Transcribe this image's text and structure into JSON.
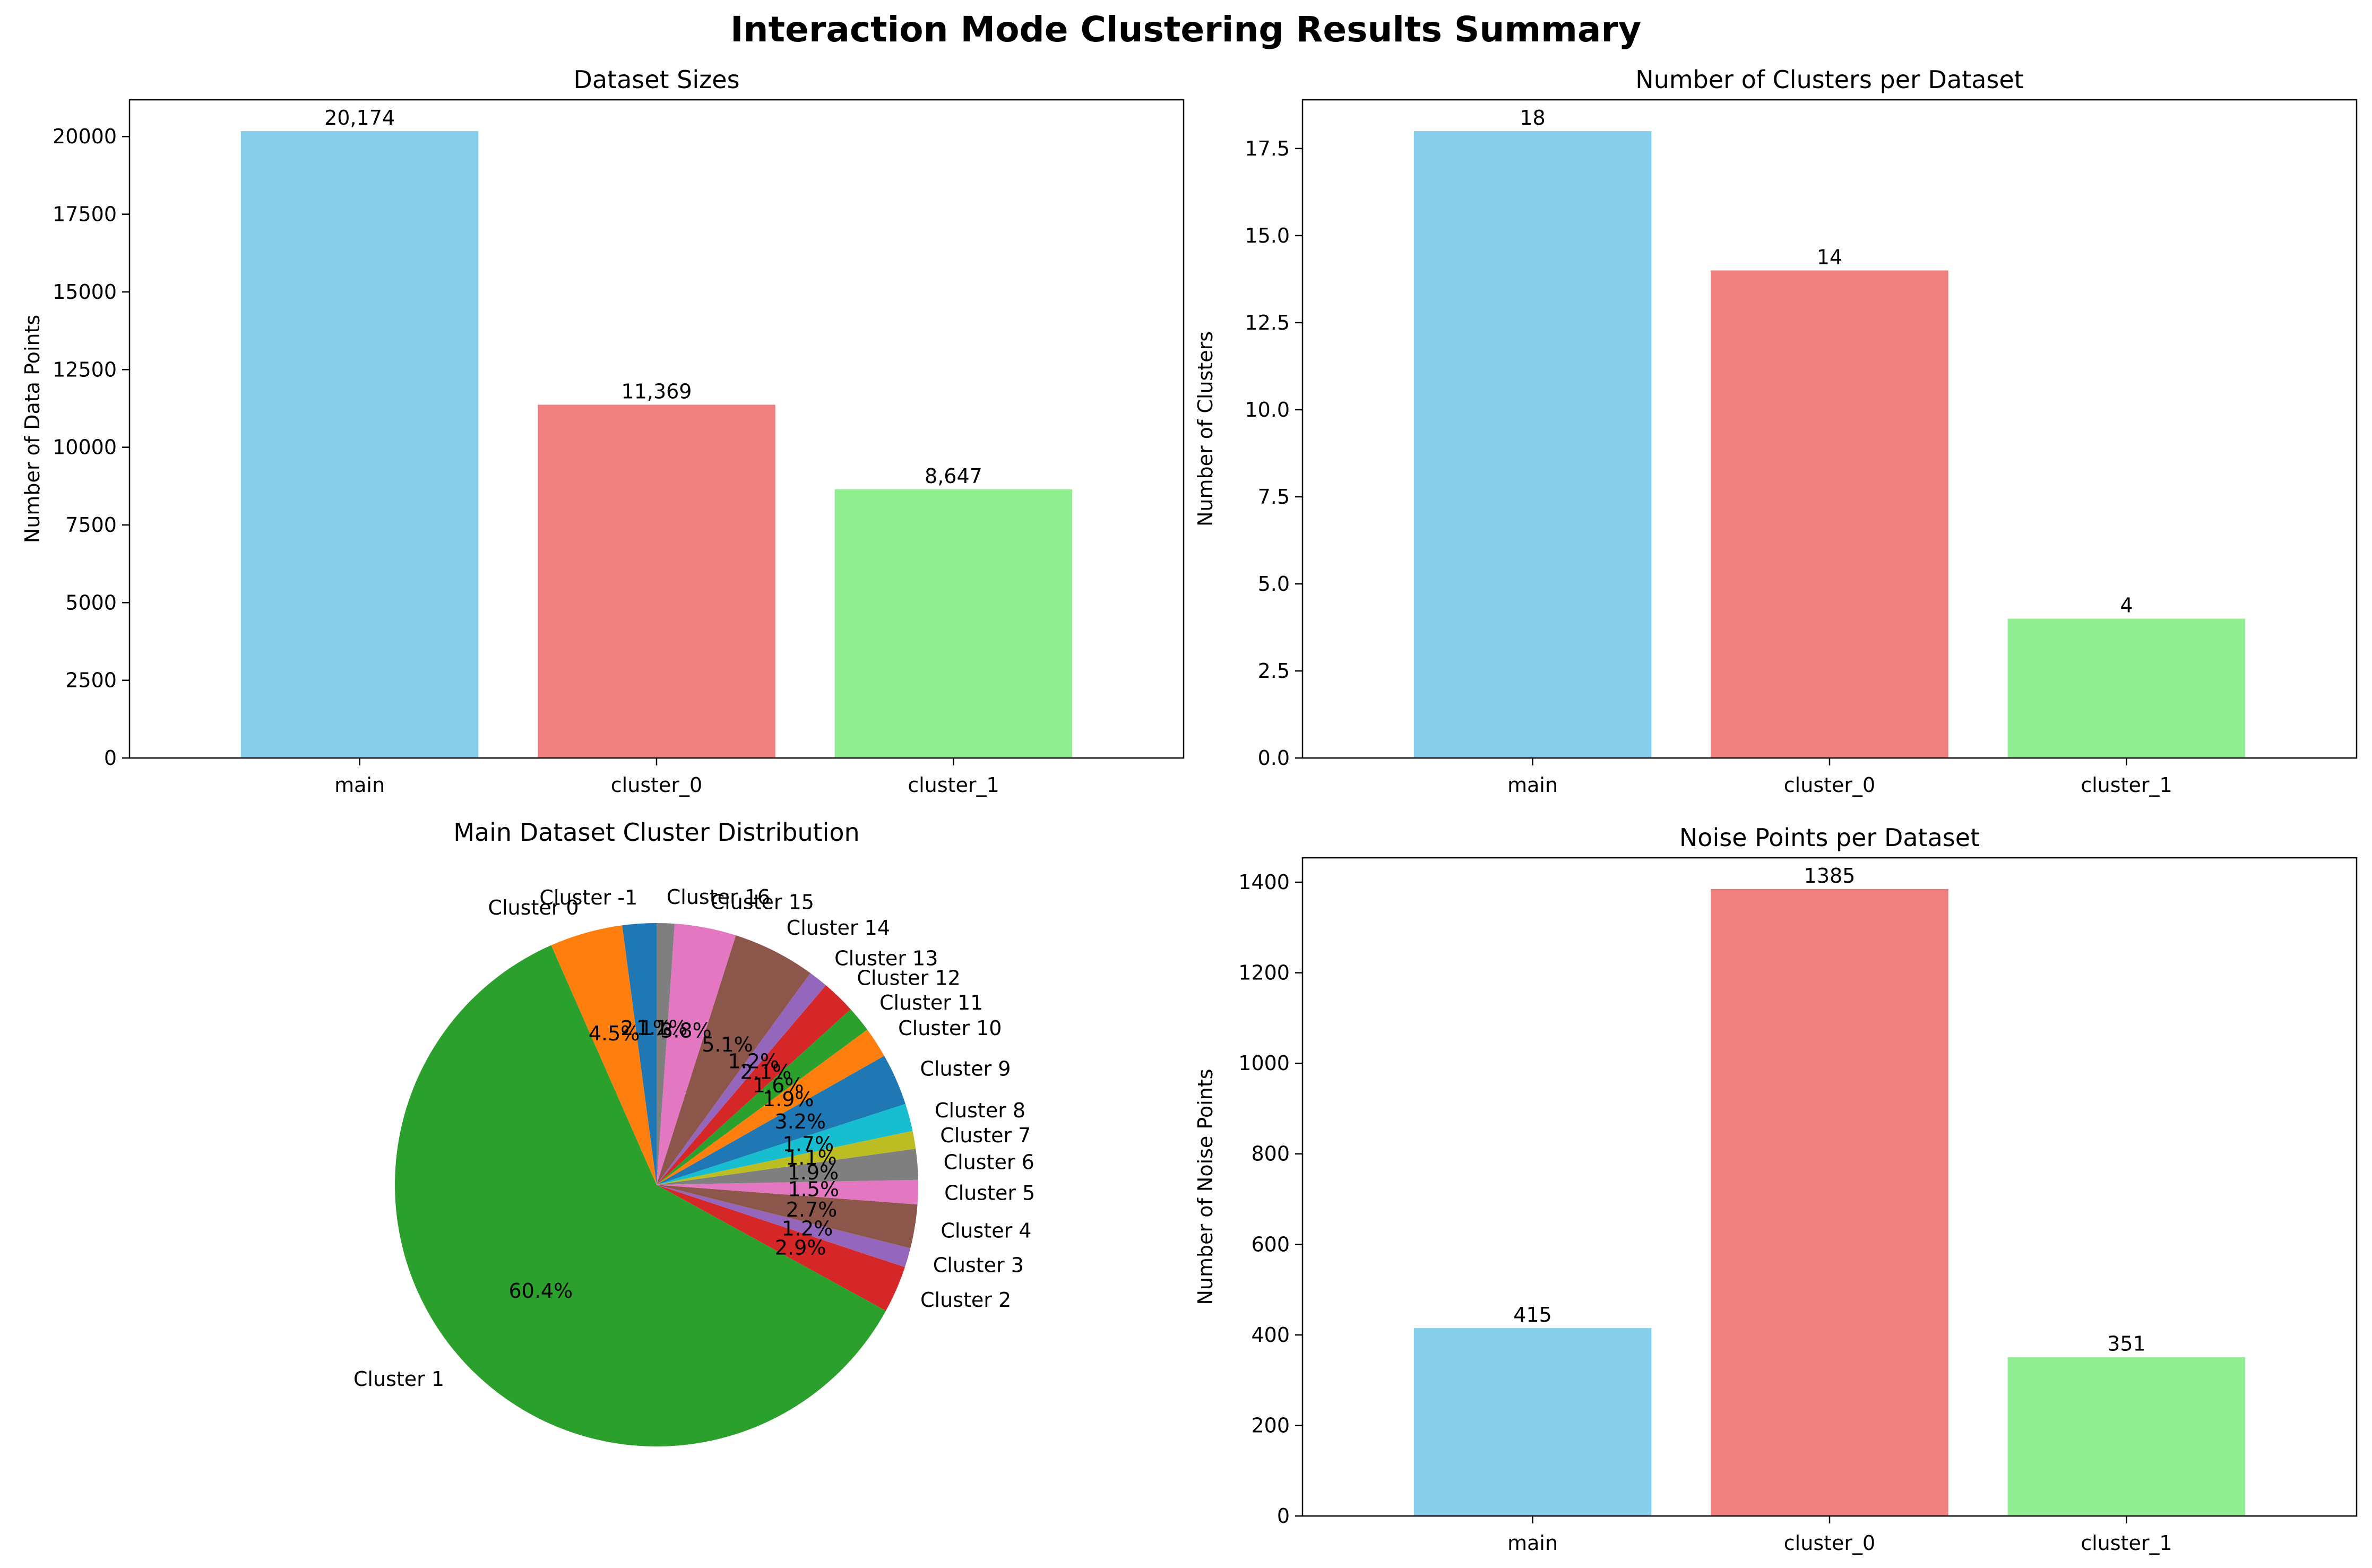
{
  "suptitle": "Interaction Mode Clustering Results Summary",
  "chart_data": [
    {
      "type": "bar",
      "title": "Dataset Sizes",
      "xlabel": "",
      "ylabel": "Number of Data Points",
      "categories": [
        "main",
        "cluster_0",
        "cluster_1"
      ],
      "values": [
        20174,
        11369,
        8647
      ],
      "value_labels": [
        "20,174",
        "11,369",
        "8,647"
      ],
      "colors": [
        "#87ceeb",
        "#f08080",
        "#90ee90"
      ],
      "ylim": [
        0,
        21183
      ],
      "yticks": [
        0,
        2500,
        5000,
        7500,
        10000,
        12500,
        15000,
        17500,
        20000
      ],
      "ytick_labels": [
        "0",
        "2500",
        "5000",
        "7500",
        "10000",
        "12500",
        "15000",
        "17500",
        "20000"
      ],
      "grid": false
    },
    {
      "type": "bar",
      "title": "Number of Clusters per Dataset",
      "xlabel": "",
      "ylabel": "Number of Clusters",
      "categories": [
        "main",
        "cluster_0",
        "cluster_1"
      ],
      "values": [
        18,
        14,
        4
      ],
      "value_labels": [
        "18",
        "14",
        "4"
      ],
      "colors": [
        "#87ceeb",
        "#f08080",
        "#90ee90"
      ],
      "ylim": [
        0,
        18.9
      ],
      "yticks": [
        0,
        2.5,
        5,
        7.5,
        10,
        12.5,
        15,
        17.5
      ],
      "ytick_labels": [
        "0.0",
        "2.5",
        "5.0",
        "7.5",
        "10.0",
        "12.5",
        "15.0",
        "17.5"
      ],
      "grid": false
    },
    {
      "type": "pie",
      "title": "Main Dataset Cluster Distribution",
      "start_angle_deg": 90,
      "direction": "counterclockwise",
      "slices": [
        {
          "label": "Cluster -1",
          "value": 2.1,
          "pct": "2.1%",
          "color": "#1f77b4"
        },
        {
          "label": "Cluster 0",
          "value": 4.5,
          "pct": "4.5%",
          "color": "#ff7f0e"
        },
        {
          "label": "Cluster 1",
          "value": 60.4,
          "pct": "60.4%",
          "color": "#2ca02c"
        },
        {
          "label": "Cluster 2",
          "value": 2.9,
          "pct": "2.9%",
          "color": "#d62728"
        },
        {
          "label": "Cluster 3",
          "value": 1.2,
          "pct": "1.2%",
          "color": "#9467bd"
        },
        {
          "label": "Cluster 4",
          "value": 2.7,
          "pct": "2.7%",
          "color": "#8c564b"
        },
        {
          "label": "Cluster 5",
          "value": 1.5,
          "pct": "1.5%",
          "color": "#e377c2"
        },
        {
          "label": "Cluster 6",
          "value": 1.9,
          "pct": "1.9%",
          "color": "#7f7f7f"
        },
        {
          "label": "Cluster 7",
          "value": 1.1,
          "pct": "1.1%",
          "color": "#bcbd22"
        },
        {
          "label": "Cluster 8",
          "value": 1.7,
          "pct": "1.7%",
          "color": "#17becf"
        },
        {
          "label": "Cluster 9",
          "value": 3.2,
          "pct": "3.2%",
          "color": "#1f77b4"
        },
        {
          "label": "Cluster 10",
          "value": 1.9,
          "pct": "1.9%",
          "color": "#ff7f0e"
        },
        {
          "label": "Cluster 11",
          "value": 1.6,
          "pct": "1.6%",
          "color": "#2ca02c"
        },
        {
          "label": "Cluster 12",
          "value": 2.1,
          "pct": "2.1%",
          "color": "#d62728"
        },
        {
          "label": "Cluster 13",
          "value": 1.2,
          "pct": "1.2%",
          "color": "#9467bd"
        },
        {
          "label": "Cluster 14",
          "value": 5.1,
          "pct": "5.1%",
          "color": "#8c564b"
        },
        {
          "label": "Cluster 15",
          "value": 3.8,
          "pct": "3.8%",
          "color": "#e377c2"
        },
        {
          "label": "Cluster 16",
          "value": 1.1,
          "pct": "1.1%",
          "color": "#7f7f7f"
        }
      ]
    },
    {
      "type": "bar",
      "title": "Noise Points per Dataset",
      "xlabel": "",
      "ylabel": "Number of Noise Points",
      "categories": [
        "main",
        "cluster_0",
        "cluster_1"
      ],
      "values": [
        415,
        1385,
        351
      ],
      "value_labels": [
        "415",
        "1385",
        "351"
      ],
      "colors": [
        "#87ceeb",
        "#f08080",
        "#90ee90"
      ],
      "ylim": [
        0,
        1454
      ],
      "yticks": [
        0,
        200,
        400,
        600,
        800,
        1000,
        1200,
        1400
      ],
      "ytick_labels": [
        "0",
        "200",
        "400",
        "600",
        "800",
        "1000",
        "1200",
        "1400"
      ],
      "grid": false
    }
  ]
}
